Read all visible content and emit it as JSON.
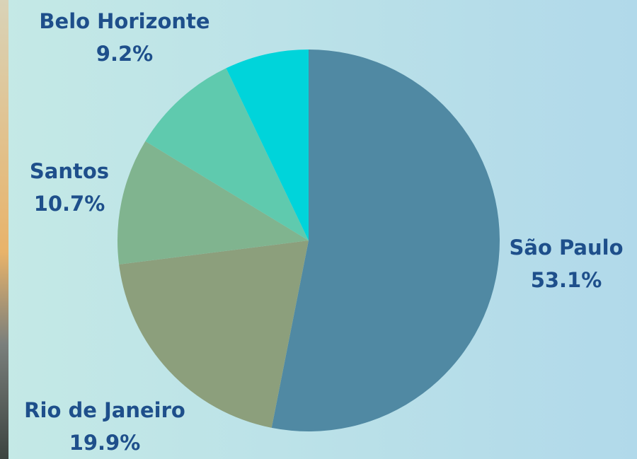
{
  "chart_data": {
    "type": "pie",
    "categories": [
      "São Paulo",
      "Rio de Janeiro",
      "Santos",
      "Belo Horizonte",
      null
    ],
    "values": [
      53.1,
      19.9,
      10.7,
      9.2,
      7.1
    ],
    "value_labels": [
      "53.1%",
      "19.9%",
      "10.7%",
      "9.2%",
      null
    ],
    "colors": [
      "#5089a3",
      "#8c9f7c",
      "#80b48f",
      "#5fcaae",
      "#00d4da"
    ]
  }
}
